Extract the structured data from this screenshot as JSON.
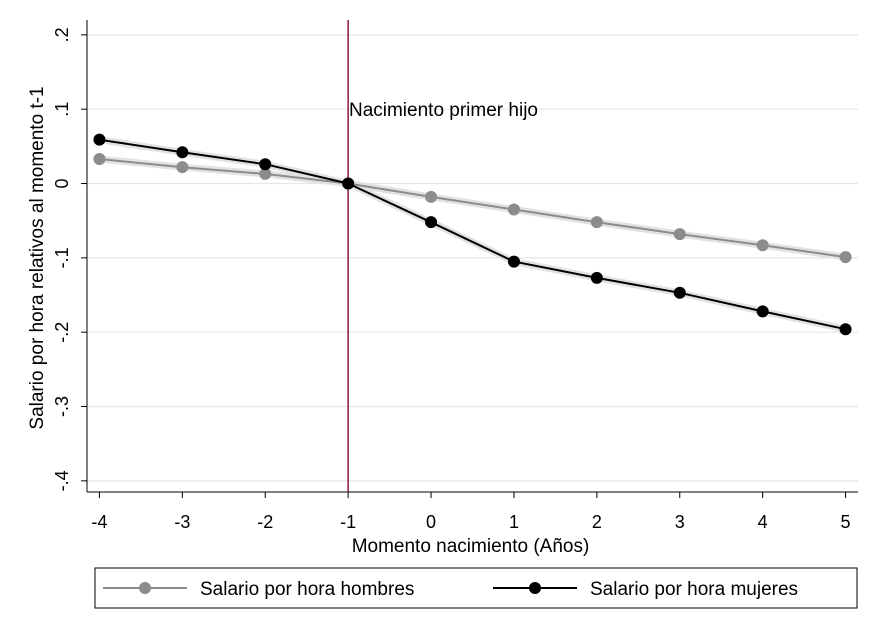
{
  "chart_data": {
    "type": "line",
    "xlabel": "Momento nacimiento (Años)",
    "ylabel": "Salario por hora relativos al momento t-1",
    "x": [
      -4,
      -3,
      -2,
      -1,
      0,
      1,
      2,
      3,
      4,
      5
    ],
    "xticks": [
      "-4",
      "-3",
      "-2",
      "-1",
      "0",
      "1",
      "2",
      "3",
      "4",
      "5"
    ],
    "yticks": [
      "-.4",
      "-.3",
      "-.2",
      "-.1",
      "0",
      ".1",
      ".2"
    ],
    "ytick_values": [
      -0.4,
      -0.3,
      -0.2,
      -0.1,
      0,
      0.1,
      0.2
    ],
    "xlim": [
      -4.15,
      5.15
    ],
    "ylim": [
      -0.415,
      0.22
    ],
    "grid": true,
    "legend_position": "bottom",
    "vline": {
      "x": -1,
      "color": "#8b1a3d",
      "label": "Nacimiento primer hijo",
      "label_x": 0.15,
      "label_y": 0.1
    },
    "series": [
      {
        "name": "Salario por hora hombres",
        "color": "#8c8c8c",
        "values": [
          0.033,
          0.022,
          0.013,
          0.0,
          -0.018,
          -0.035,
          -0.052,
          -0.068,
          -0.083,
          -0.099
        ]
      },
      {
        "name": "Salario por hora mujeres",
        "color": "#000000",
        "values": [
          0.059,
          0.042,
          0.026,
          0.0,
          -0.052,
          -0.105,
          -0.127,
          -0.147,
          -0.172,
          -0.196
        ]
      }
    ]
  }
}
